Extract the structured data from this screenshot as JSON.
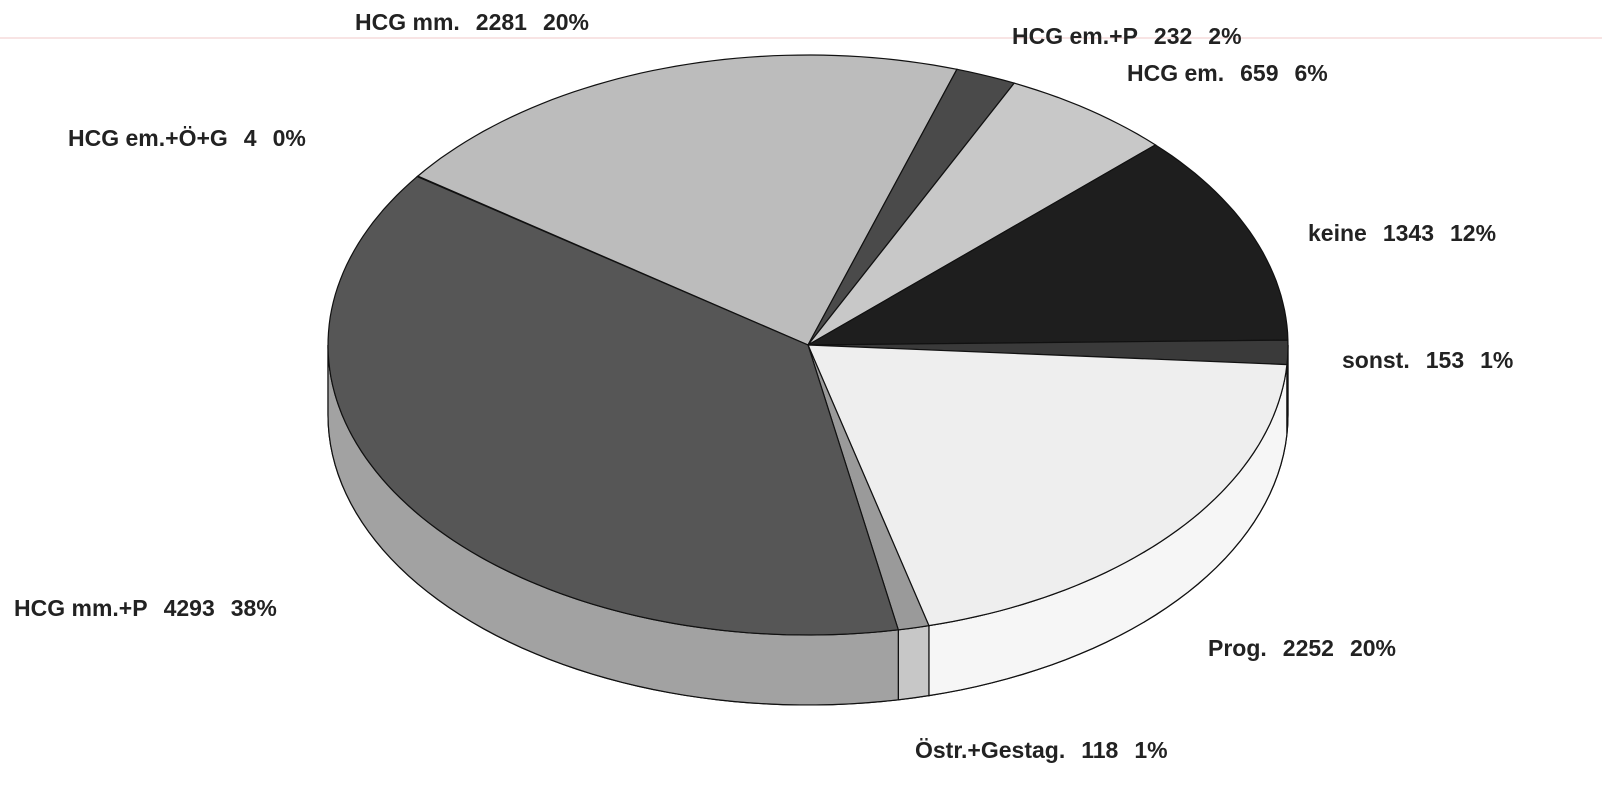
{
  "chart_data": {
    "type": "pie",
    "categories": [
      "HCG em.+Ö+G",
      "HCG mm.",
      "HCG em.+P",
      "HCG em.",
      "keine",
      "sonst.",
      "Prog.",
      "Östr.+Gestag.",
      "HCG mm.+P"
    ],
    "values": [
      4,
      2281,
      232,
      659,
      1343,
      153,
      2252,
      118,
      4293
    ],
    "percents": [
      0,
      20,
      2,
      6,
      12,
      1,
      20,
      1,
      38
    ],
    "percent_labels": [
      "0%",
      "20%",
      "2%",
      "6%",
      "12%",
      "1%",
      "20%",
      "1%",
      "38%"
    ],
    "colors": [
      "#8a8a8a",
      "#bcbcbc",
      "#4a4a4a",
      "#c8c8c8",
      "#1e1e1e",
      "#3a3a3a",
      "#eeeeee",
      "#9a9a9a",
      "#565656"
    ],
    "three_d": true
  }
}
